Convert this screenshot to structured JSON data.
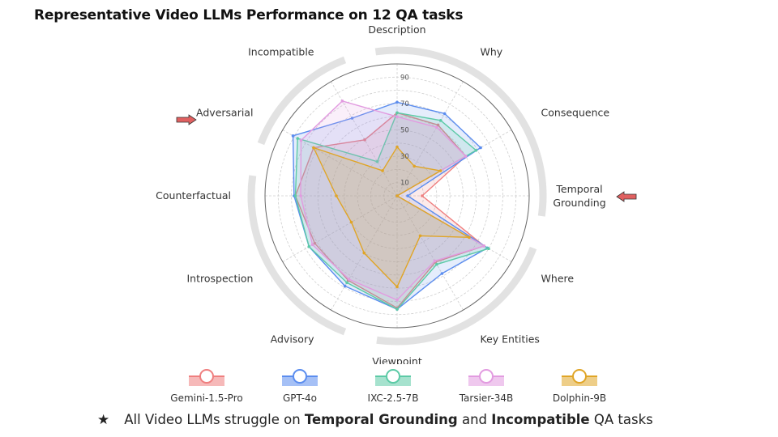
{
  "chart_data": {
    "type": "radar",
    "title": "Representative Video LLMs Performance on 12 QA tasks",
    "categories": [
      "Description",
      "Why",
      "Consequence",
      "Temporal Grounding",
      "Where",
      "Key Entities",
      "Viewpoint",
      "Advisory",
      "Introspection",
      "Counterfactual",
      "Adversarial",
      "Incompatible"
    ],
    "radial_range": [
      0,
      100
    ],
    "radial_ticks": [
      10,
      30,
      50,
      70,
      90
    ],
    "grid": true,
    "legend_placement": "bottom",
    "series": [
      {
        "name": "Gemini-1.5-Pro",
        "color": "#ef7f7f",
        "values": [
          63,
          62,
          60,
          19,
          76,
          58,
          85,
          74,
          72,
          77,
          73,
          49
        ]
      },
      {
        "name": "GPT-4o",
        "color": "#5b8def",
        "values": [
          71,
          72,
          73,
          8,
          79,
          68,
          86,
          79,
          77,
          78,
          91,
          68
        ]
      },
      {
        "name": "IXC-2.5-7B",
        "color": "#5ccaa6",
        "values": [
          63,
          66,
          69,
          0,
          80,
          60,
          86,
          76,
          77,
          77,
          87,
          30
        ]
      },
      {
        "name": "Tarsier-34B",
        "color": "#e29be0",
        "values": [
          60,
          60,
          60,
          0,
          76,
          57,
          79,
          73,
          74,
          73,
          84,
          83
        ]
      },
      {
        "name": "Dolphin-9B",
        "color": "#e0a526",
        "values": [
          37,
          26,
          38,
          0,
          63,
          35,
          69,
          50,
          40,
          46,
          73,
          22
        ]
      }
    ],
    "highlighted_categories": [
      "Adversarial",
      "Temporal Grounding"
    ],
    "highlight_arrow_color": "#e06060"
  },
  "footer": {
    "star": "★",
    "text_1": "All Video LLMs struggle on ",
    "bold_1": "Temporal Grounding",
    "text_2": " and ",
    "bold_2": "Incompatible",
    "text_3": " QA tasks"
  }
}
